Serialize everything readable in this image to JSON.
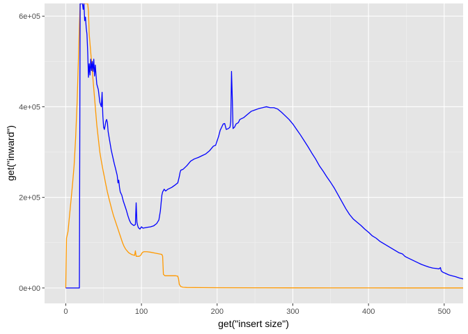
{
  "chart_data": {
    "type": "line",
    "xlabel": "get(\"insert size\")",
    "ylabel": "get(\"inward\")",
    "xlim": [
      -28,
      525
    ],
    "ylim": [
      -34000,
      628000
    ],
    "x_ticks": [
      0,
      100,
      200,
      300,
      400,
      500
    ],
    "x_tick_labels": [
      "0",
      "100",
      "200",
      "300",
      "400",
      "500"
    ],
    "y_ticks": [
      0,
      200000,
      400000,
      600000
    ],
    "y_tick_labels": [
      "0e+00",
      "2e+05",
      "4e+05",
      "6e+05"
    ],
    "grid": true,
    "legend": "none",
    "background": "#e5e5e5",
    "series": [
      {
        "color": "#ff9900",
        "points": [
          [
            0,
            0
          ],
          [
            1,
            110000
          ],
          [
            3,
            125000
          ],
          [
            5,
            160000
          ],
          [
            7,
            195000
          ],
          [
            9,
            230000
          ],
          [
            11,
            270000
          ],
          [
            13,
            330000
          ],
          [
            15,
            410000
          ],
          [
            17,
            520000
          ],
          [
            18,
            580000
          ],
          [
            19,
            628000
          ],
          [
            21,
            628000
          ],
          [
            23,
            628000
          ],
          [
            25,
            628000
          ],
          [
            27,
            628000
          ],
          [
            29,
            628000
          ],
          [
            30,
            610000
          ],
          [
            31,
            560000
          ],
          [
            33,
            520000
          ],
          [
            35,
            480000
          ],
          [
            37,
            440000
          ],
          [
            39,
            400000
          ],
          [
            41,
            360000
          ],
          [
            43,
            330000
          ],
          [
            45,
            300000
          ],
          [
            47,
            280000
          ],
          [
            49,
            262000
          ],
          [
            51,
            245000
          ],
          [
            53,
            228000
          ],
          [
            55,
            212000
          ],
          [
            57,
            198000
          ],
          [
            59,
            185000
          ],
          [
            61,
            172000
          ],
          [
            63,
            160000
          ],
          [
            65,
            150000
          ],
          [
            67,
            140000
          ],
          [
            69,
            130000
          ],
          [
            71,
            120000
          ],
          [
            73,
            110000
          ],
          [
            75,
            100000
          ],
          [
            77,
            92000
          ],
          [
            79,
            86000
          ],
          [
            81,
            82000
          ],
          [
            83,
            78000
          ],
          [
            85,
            76000
          ],
          [
            87,
            74000
          ],
          [
            89,
            73000
          ],
          [
            91,
            72000
          ],
          [
            92,
            82000
          ],
          [
            93,
            70000
          ],
          [
            95,
            70000
          ],
          [
            97,
            70000
          ],
          [
            99,
            72000
          ],
          [
            101,
            78000
          ],
          [
            103,
            80000
          ],
          [
            107,
            80000
          ],
          [
            112,
            79000
          ],
          [
            118,
            77000
          ],
          [
            124,
            75000
          ],
          [
            127,
            74000
          ],
          [
            128,
            70000
          ],
          [
            129,
            30000
          ],
          [
            131,
            27000
          ],
          [
            135,
            27000
          ],
          [
            140,
            27000
          ],
          [
            145,
            27000
          ],
          [
            148,
            26000
          ],
          [
            149,
            20000
          ],
          [
            150,
            8000
          ],
          [
            152,
            3000
          ],
          [
            155,
            1500
          ],
          [
            160,
            1000
          ],
          [
            180,
            800
          ],
          [
            200,
            600
          ],
          [
            250,
            400
          ],
          [
            300,
            300
          ],
          [
            350,
            200
          ],
          [
            400,
            150
          ],
          [
            450,
            100
          ],
          [
            500,
            100
          ],
          [
            525,
            100
          ]
        ]
      },
      {
        "color": "#0000ff",
        "points": [
          [
            0,
            0
          ],
          [
            17,
            0
          ],
          [
            18,
            0
          ],
          [
            19,
            628000
          ],
          [
            21,
            628000
          ],
          [
            22,
            628000
          ],
          [
            23,
            615000
          ],
          [
            24,
            628000
          ],
          [
            25,
            590000
          ],
          [
            26,
            598000
          ],
          [
            27,
            575000
          ],
          [
            28,
            560000
          ],
          [
            29,
            520000
          ],
          [
            30,
            465000
          ],
          [
            31,
            495000
          ],
          [
            32,
            470000
          ],
          [
            33,
            505000
          ],
          [
            34,
            480000
          ],
          [
            35,
            500000
          ],
          [
            36,
            478000
          ],
          [
            37,
            505000
          ],
          [
            38,
            468000
          ],
          [
            39,
            492000
          ],
          [
            40,
            470000
          ],
          [
            41,
            450000
          ],
          [
            43,
            438000
          ],
          [
            45,
            410000
          ],
          [
            47,
            400000
          ],
          [
            48,
            432000
          ],
          [
            49,
            380000
          ],
          [
            50,
            355000
          ],
          [
            51,
            350000
          ],
          [
            52,
            358000
          ],
          [
            53,
            368000
          ],
          [
            54,
            372000
          ],
          [
            55,
            365000
          ],
          [
            56,
            345000
          ],
          [
            58,
            325000
          ],
          [
            60,
            305000
          ],
          [
            62,
            290000
          ],
          [
            64,
            275000
          ],
          [
            66,
            262000
          ],
          [
            68,
            248000
          ],
          [
            69,
            232000
          ],
          [
            70,
            238000
          ],
          [
            71,
            222000
          ],
          [
            72,
            212000
          ],
          [
            74,
            205000
          ],
          [
            76,
            192000
          ],
          [
            78,
            182000
          ],
          [
            80,
            172000
          ],
          [
            82,
            160000
          ],
          [
            84,
            150000
          ],
          [
            86,
            143000
          ],
          [
            88,
            140000
          ],
          [
            90,
            138000
          ],
          [
            92,
            140000
          ],
          [
            93,
            188000
          ],
          [
            94,
            145000
          ],
          [
            95,
            138000
          ],
          [
            96,
            133000
          ],
          [
            98,
            130000
          ],
          [
            100,
            135000
          ],
          [
            102,
            132000
          ],
          [
            105,
            133000
          ],
          [
            108,
            134000
          ],
          [
            112,
            135000
          ],
          [
            116,
            137000
          ],
          [
            120,
            142000
          ],
          [
            123,
            150000
          ],
          [
            125,
            170000
          ],
          [
            126,
            188000
          ],
          [
            127,
            205000
          ],
          [
            128,
            212000
          ],
          [
            130,
            218000
          ],
          [
            132,
            214000
          ],
          [
            135,
            218000
          ],
          [
            140,
            222000
          ],
          [
            145,
            228000
          ],
          [
            148,
            232000
          ],
          [
            150,
            246000
          ],
          [
            151,
            255000
          ],
          [
            152,
            260000
          ],
          [
            155,
            262000
          ],
          [
            160,
            270000
          ],
          [
            165,
            280000
          ],
          [
            170,
            285000
          ],
          [
            175,
            288000
          ],
          [
            180,
            292000
          ],
          [
            185,
            296000
          ],
          [
            190,
            303000
          ],
          [
            195,
            313000
          ],
          [
            198,
            315000
          ],
          [
            200,
            325000
          ],
          [
            202,
            335000
          ],
          [
            204,
            348000
          ],
          [
            206,
            355000
          ],
          [
            208,
            362000
          ],
          [
            210,
            363000
          ],
          [
            212,
            350000
          ],
          [
            215,
            352000
          ],
          [
            217,
            355000
          ],
          [
            218,
            368000
          ],
          [
            219,
            478000
          ],
          [
            220,
            420000
          ],
          [
            221,
            352000
          ],
          [
            223,
            355000
          ],
          [
            225,
            362000
          ],
          [
            228,
            365000
          ],
          [
            230,
            372000
          ],
          [
            235,
            376000
          ],
          [
            240,
            383000
          ],
          [
            245,
            390000
          ],
          [
            250,
            393000
          ],
          [
            255,
            396000
          ],
          [
            260,
            398000
          ],
          [
            265,
            400000
          ],
          [
            270,
            398000
          ],
          [
            275,
            398000
          ],
          [
            280,
            395000
          ],
          [
            285,
            388000
          ],
          [
            290,
            380000
          ],
          [
            295,
            372000
          ],
          [
            300,
            362000
          ],
          [
            305,
            350000
          ],
          [
            310,
            338000
          ],
          [
            315,
            325000
          ],
          [
            320,
            312000
          ],
          [
            325,
            298000
          ],
          [
            330,
            285000
          ],
          [
            335,
            270000
          ],
          [
            340,
            258000
          ],
          [
            345,
            245000
          ],
          [
            350,
            233000
          ],
          [
            355,
            220000
          ],
          [
            360,
            205000
          ],
          [
            365,
            190000
          ],
          [
            370,
            175000
          ],
          [
            375,
            162000
          ],
          [
            380,
            152000
          ],
          [
            385,
            145000
          ],
          [
            390,
            138000
          ],
          [
            395,
            130000
          ],
          [
            400,
            123000
          ],
          [
            405,
            115000
          ],
          [
            410,
            110000
          ],
          [
            415,
            103000
          ],
          [
            420,
            98000
          ],
          [
            425,
            93000
          ],
          [
            430,
            88000
          ],
          [
            435,
            83000
          ],
          [
            440,
            78000
          ],
          [
            445,
            75000
          ],
          [
            448,
            70000
          ],
          [
            450,
            68000
          ],
          [
            455,
            64000
          ],
          [
            460,
            60000
          ],
          [
            465,
            56000
          ],
          [
            470,
            52000
          ],
          [
            475,
            49000
          ],
          [
            480,
            46000
          ],
          [
            485,
            44000
          ],
          [
            490,
            43000
          ],
          [
            493,
            42000
          ],
          [
            495,
            45000
          ],
          [
            496,
            38000
          ],
          [
            498,
            35000
          ],
          [
            502,
            32000
          ],
          [
            506,
            29000
          ],
          [
            510,
            27000
          ],
          [
            515,
            25000
          ],
          [
            520,
            22000
          ],
          [
            525,
            20000
          ]
        ]
      }
    ]
  }
}
